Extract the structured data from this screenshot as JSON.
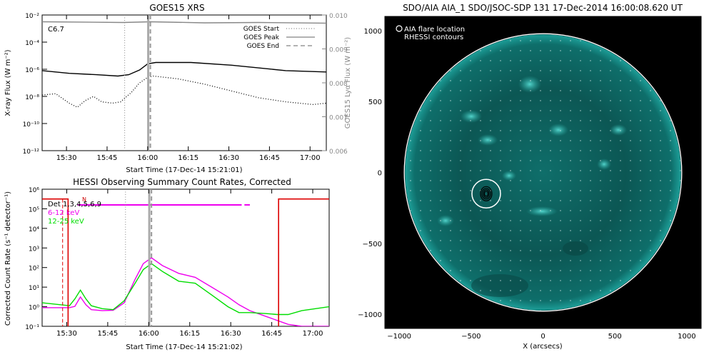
{
  "chart_data": [
    {
      "id": "goes",
      "type": "line",
      "title": "GOES15 XRS",
      "xlabel": "Start Time (17-Dec-14 15:21:01)",
      "ylabel": "X-ray Flux (W m⁻²)",
      "ylabel_right": "GOES15 Lyα Flux (W m⁻²)",
      "x_range_min": [
        0,
        105
      ],
      "x_ticks": [
        {
          "v": 9,
          "label": "15:30"
        },
        {
          "v": 24,
          "label": "15:45"
        },
        {
          "v": 39,
          "label": "16:00"
        },
        {
          "v": 54,
          "label": "16:15"
        },
        {
          "v": 69,
          "label": "16:30"
        },
        {
          "v": 84,
          "label": "16:45"
        },
        {
          "v": 99,
          "label": "17:00"
        }
      ],
      "y_scale": "log",
      "ylim_exp": [
        -12,
        -2
      ],
      "y_ticks": [
        "10⁻¹²",
        "10⁻¹⁰",
        "10⁻⁸",
        "10⁻⁶",
        "10⁻⁴",
        "10⁻²"
      ],
      "y2_ticks": [
        "0.006",
        "0.007",
        "0.008",
        "0.009",
        "0.010"
      ],
      "annotation": "C6.7",
      "legend": [
        {
          "name": "GOES Start",
          "style": "dotted"
        },
        {
          "name": "GOES Peak",
          "style": "solid"
        },
        {
          "name": "GOES End",
          "style": "dashed"
        }
      ],
      "markers_min": {
        "start": 30.5,
        "peak": 39.2,
        "end": 40.0
      },
      "series": [
        {
          "kind": "lya",
          "color": "#888888",
          "style": "solid",
          "points": [
            [
              0,
              -2.5
            ],
            [
              30,
              -2.55
            ],
            [
              40,
              -2.5
            ],
            [
              60,
              -2.58
            ],
            [
              80,
              -2.55
            ],
            [
              105,
              -2.6
            ]
          ]
        },
        {
          "kind": "long",
          "color": "#000000",
          "style": "solid",
          "points": [
            [
              0,
              -6.1
            ],
            [
              10,
              -6.3
            ],
            [
              20,
              -6.4
            ],
            [
              28,
              -6.5
            ],
            [
              32,
              -6.4
            ],
            [
              36,
              -6.05
            ],
            [
              39,
              -5.6
            ],
            [
              42,
              -5.5
            ],
            [
              55,
              -5.5
            ],
            [
              70,
              -5.7
            ],
            [
              90,
              -6.1
            ],
            [
              105,
              -6.2
            ]
          ]
        },
        {
          "kind": "short",
          "color": "#000000",
          "style": "dotted",
          "points": [
            [
              0,
              -7.9
            ],
            [
              5,
              -7.8
            ],
            [
              10,
              -8.5
            ],
            [
              13,
              -8.8
            ],
            [
              16,
              -8.3
            ],
            [
              19,
              -8.0
            ],
            [
              22,
              -8.4
            ],
            [
              26,
              -8.5
            ],
            [
              29,
              -8.4
            ],
            [
              33,
              -7.7
            ],
            [
              36,
              -7.0
            ],
            [
              39,
              -6.6
            ],
            [
              41,
              -6.5
            ],
            [
              50,
              -6.7
            ],
            [
              60,
              -7.1
            ],
            [
              70,
              -7.6
            ],
            [
              80,
              -8.1
            ],
            [
              90,
              -8.4
            ],
            [
              100,
              -8.6
            ],
            [
              105,
              -8.5
            ]
          ]
        }
      ]
    },
    {
      "id": "hessi",
      "type": "line",
      "title": "HESSI Observing Summary Count Rates, Corrected",
      "xlabel": "Start Time (17-Dec-14 15:21:02)",
      "ylabel": "Corrected Count Rate (s⁻¹ detector⁻¹)",
      "x_range_min": [
        0,
        105
      ],
      "x_ticks": [
        {
          "v": 9,
          "label": "15:30"
        },
        {
          "v": 24,
          "label": "15:45"
        },
        {
          "v": 39,
          "label": "16:00"
        },
        {
          "v": 54,
          "label": "16:15"
        },
        {
          "v": 69,
          "label": "16:30"
        },
        {
          "v": 84,
          "label": "16:45"
        },
        {
          "v": 99,
          "label": "17:00"
        }
      ],
      "y_scale": "log",
      "ylim_exp": [
        -1,
        6
      ],
      "y_ticks": [
        "10⁻¹",
        "10⁰",
        "10¹",
        "10²",
        "10³",
        "10⁴",
        "10⁵",
        "10⁶"
      ],
      "annotation": "N",
      "legend": [
        {
          "name": "Det 1,3,4,5,6,9",
          "color": "#000000"
        },
        {
          "name": "6-12 keV",
          "color": "#ee00ee"
        },
        {
          "name": "12-25 keV",
          "color": "#00dd00"
        }
      ],
      "markers_min": {
        "start": 30.5,
        "peak": 39.2,
        "end": 40.0
      },
      "series": [
        {
          "name": "6-12 keV",
          "color": "#ee00ee",
          "points": [
            [
              0,
              -0.05
            ],
            [
              10,
              -0.05
            ],
            [
              12,
              0.02
            ],
            [
              14,
              0.5
            ],
            [
              16,
              0.1
            ],
            [
              18,
              -0.15
            ],
            [
              22,
              -0.2
            ],
            [
              26,
              -0.18
            ],
            [
              30,
              0.2
            ],
            [
              34,
              1.4
            ],
            [
              37,
              2.2
            ],
            [
              40,
              2.5
            ],
            [
              44,
              2.1
            ],
            [
              50,
              1.7
            ],
            [
              56,
              1.5
            ],
            [
              62,
              1.0
            ],
            [
              68,
              0.5
            ],
            [
              72,
              0.1
            ],
            [
              76,
              -0.2
            ],
            [
              82,
              -0.5
            ],
            [
              86,
              -0.7
            ],
            [
              90,
              -0.9
            ],
            [
              95,
              -1.0
            ],
            [
              105,
              -1.0
            ]
          ]
        },
        {
          "name": "12-25 keV",
          "color": "#00dd00",
          "points": [
            [
              0,
              0.2
            ],
            [
              10,
              0.05
            ],
            [
              12,
              0.4
            ],
            [
              14,
              0.85
            ],
            [
              16,
              0.4
            ],
            [
              18,
              0.05
            ],
            [
              22,
              -0.1
            ],
            [
              26,
              -0.15
            ],
            [
              30,
              0.3
            ],
            [
              34,
              1.2
            ],
            [
              37,
              1.9
            ],
            [
              40,
              2.2
            ],
            [
              44,
              1.8
            ],
            [
              50,
              1.3
            ],
            [
              56,
              1.2
            ],
            [
              62,
              0.6
            ],
            [
              68,
              0.0
            ],
            [
              72,
              -0.3
            ],
            [
              76,
              -0.3
            ],
            [
              82,
              -0.35
            ],
            [
              86,
              -0.4
            ],
            [
              90,
              -0.4
            ],
            [
              95,
              -0.2
            ],
            [
              105,
              0.0
            ]
          ]
        }
      ],
      "flag_segments": [
        [
          13,
          73
        ],
        [
          74,
          76
        ]
      ],
      "flag_level_exp": 5.2,
      "attenuator": {
        "high_exp": 5.5,
        "drop_start_min": 9.5,
        "drop_end_min": 86.5
      }
    },
    {
      "id": "aia",
      "type": "heatmap",
      "title": "SDO/AIA AIA_1 SDO/JSOC-SDP 131 17-Dec-2014 16:00:08.620 UT",
      "xlabel": "X (arcsecs)",
      "ylabel": "",
      "xlim": [
        -1100,
        1100
      ],
      "ylim": [
        -1100,
        1100
      ],
      "x_ticks": [
        -1000,
        -500,
        0,
        500,
        1000
      ],
      "y_ticks": [
        -1000,
        -500,
        0,
        500,
        1000
      ],
      "legend": [
        "AIA flare location",
        "RHESSI contours"
      ],
      "flare_location": [
        -395,
        -150
      ]
    }
  ]
}
